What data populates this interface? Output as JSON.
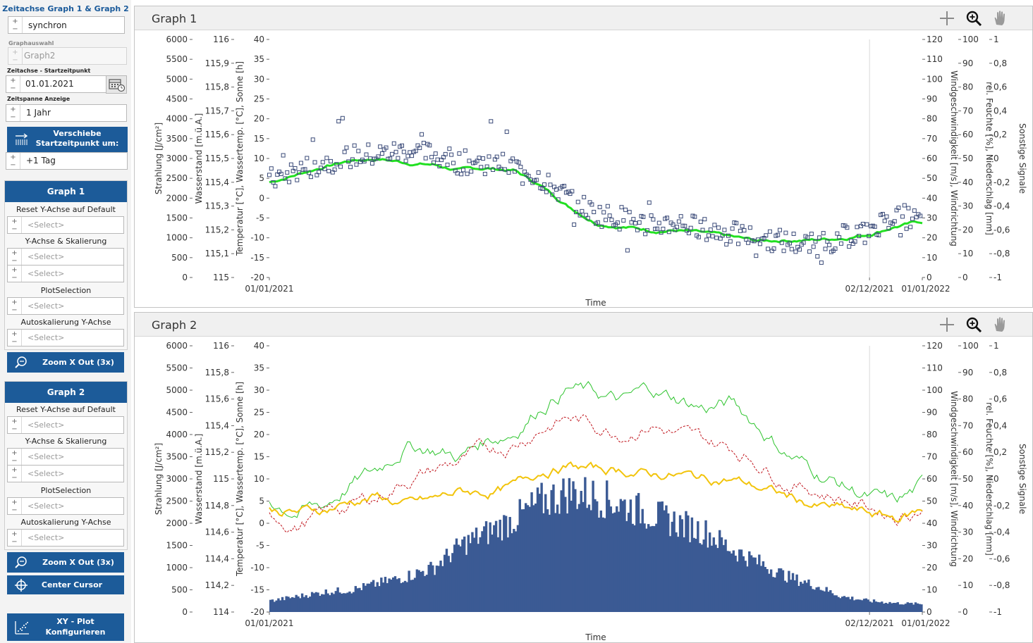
{
  "sidebar": {
    "timeaxis_caption": "Zeitachse Graph 1 & Graph 2",
    "sync_value": "synchron",
    "graphselect_label": "Graphauswahl",
    "graphselect_value": "Graph2",
    "start_label": "Zeitachse - Startzeitpunkt",
    "start_value": "01.01.2021",
    "span_label": "Zeitspanne Anzeige",
    "span_value": "1 Jahr",
    "shift_button": "Verschiebe Startzeitpunkt um:",
    "shift_value": "+1 Tag",
    "graph1": {
      "title": "Graph 1",
      "reset_label": "Reset Y-Achse auf Default",
      "scale_label": "Y-Achse & Skalierung",
      "plotsel_label": "PlotSelection",
      "autoscale_label": "Autoskalierung Y-Achse",
      "select_placeholder": "<Select>",
      "zoom_button": "Zoom X Out (3x)"
    },
    "graph2": {
      "title": "Graph 2",
      "reset_label": "Reset Y-Achse auf Default",
      "scale_label": "Y-Achse & Skalierung",
      "plotsel_label": "PlotSelection",
      "autoscale_label": "Autoskalierung Y-Achse",
      "select_placeholder": "<Select>",
      "zoom_button": "Zoom X Out (3x)"
    },
    "center_button": "Center Cursor",
    "xy_button": "XY - Plot Konfigurieren"
  },
  "graph1": {
    "title": "Graph 1",
    "icons": [
      "crosshair-icon",
      "zoom-icon",
      "pan-hand-icon"
    ]
  },
  "graph2": {
    "title": "Graph 2",
    "icons": [
      "crosshair-icon",
      "zoom-icon",
      "pan-hand-icon"
    ]
  },
  "colors": {
    "accent": "#1c5b99",
    "bars": "#3b5a94",
    "green_thick": "#22e022",
    "green_thin": "#2ec42e",
    "red_dashed": "#c0141c",
    "yellow": "#f2c40c",
    "markers": "#3a4a78"
  },
  "chart_data": [
    {
      "type": "scatter",
      "name": "Graph 1",
      "x_range": [
        "2021-01-01",
        "2022-01-01"
      ],
      "x_ticks": [
        "01/01/2021",
        "02/12/2021",
        "01/01/2022"
      ],
      "xlabel": "Time",
      "cursor_x": "2021-12-02",
      "axes_left": [
        {
          "label": "Strahlung [J/cm²]",
          "range": [
            0,
            6000
          ],
          "ticks": [
            "6000",
            "5500",
            "5000",
            "4500",
            "4000",
            "3500",
            "3000",
            "2500",
            "2000",
            "1500",
            "1000",
            "500",
            "0"
          ]
        },
        {
          "label": "Wasserstand [m.ü.A.]",
          "range": [
            115,
            116
          ],
          "ticks": [
            "116",
            "115,9",
            "115,8",
            "115,7",
            "115,6",
            "115,5",
            "115,4",
            "115,3",
            "115,2",
            "115,1",
            "115"
          ]
        },
        {
          "label": "Temperatur [°C], Wassertemp. [°C],  Sonne [h]",
          "range": [
            -20,
            40
          ],
          "ticks": [
            "40",
            "35",
            "30",
            "25",
            "20",
            "15",
            "10",
            "5",
            "0",
            "-5",
            "-10",
            "-15",
            "-20"
          ]
        }
      ],
      "axes_right": [
        {
          "label": "Windgeschwindigkeit [m/s], Windrichtung",
          "range": [
            0,
            120
          ],
          "ticks": [
            "120",
            "110",
            "100",
            "90",
            "80",
            "70",
            "60",
            "50",
            "40",
            "30",
            "20",
            "10",
            "0"
          ]
        },
        {
          "label": "rel. Feuchte [%], Niederschlag [mm]",
          "range": [
            0,
            100
          ],
          "ticks": [
            "100",
            "90",
            "80",
            "70",
            "60",
            "50",
            "40",
            "30",
            "20",
            "10",
            "0"
          ]
        },
        {
          "label": "Sonstige Signale",
          "range": [
            -1,
            1
          ],
          "ticks": [
            "1",
            "0,8",
            "0,6",
            "0,4",
            "0,2",
            "0",
            "-0,2",
            "-0,4",
            "-0,6",
            "-0,8",
            "-1"
          ]
        }
      ],
      "series": [
        {
          "kind": "line",
          "axis": "Temperatur [°C], Wassertemp. [°C],  Sonne [h]",
          "x_month": [
            0,
            0.5,
            1,
            1.5,
            2,
            2.5,
            3,
            3.5,
            4,
            4.5,
            5,
            5.5,
            6,
            6.5,
            7,
            7.5,
            8,
            8.5,
            9,
            9.5,
            10,
            10.5,
            11,
            11.5,
            12
          ],
          "values": [
            4,
            6,
            8,
            9.5,
            10,
            9,
            8.5,
            7,
            7.5,
            7,
            3,
            -2,
            -6,
            -7,
            -8,
            -8,
            -9,
            -10,
            -11,
            -10.5,
            -10.5,
            -10,
            -9,
            -7,
            -6
          ]
        },
        {
          "kind": "markers",
          "axis": "Temperatur [°C], Wassertemp. [°C],  Sonne [h]",
          "x_month": [
            0,
            0.5,
            1,
            1.5,
            2,
            2.5,
            3,
            3.5,
            4,
            4.5,
            5,
            5.5,
            6,
            6.5,
            7,
            7.5,
            8,
            8.5,
            9,
            9.5,
            10,
            10.5,
            11,
            11.5,
            12
          ],
          "values": [
            4.5,
            7,
            9,
            10.5,
            11,
            12,
            11,
            9,
            9,
            8,
            5,
            0,
            -4,
            -5,
            -7,
            -6,
            -8,
            -9,
            -10,
            -11,
            -12,
            -10,
            -8,
            -4,
            -6
          ]
        }
      ]
    },
    {
      "type": "line",
      "name": "Graph 2",
      "x_range": [
        "2021-01-01",
        "2022-01-01"
      ],
      "x_ticks": [
        "01/01/2021",
        "02/12/2021",
        "01/01/2022"
      ],
      "xlabel": "Time",
      "cursor_x": "2021-12-02",
      "axes_left": [
        {
          "label": "Strahlung [J/cm²]",
          "range": [
            0,
            6000
          ],
          "ticks": [
            "6000",
            "5500",
            "5000",
            "4500",
            "4000",
            "3500",
            "3000",
            "2500",
            "2000",
            "1500",
            "1000",
            "500",
            "0"
          ]
        },
        {
          "label": "Wasserstand [m.ü.A.]",
          "range": [
            114,
            116
          ],
          "ticks": [
            "116",
            "115,8",
            "115,6",
            "115,4",
            "115,2",
            "115",
            "114,8",
            "114,6",
            "114,4",
            "114,2",
            "114"
          ]
        },
        {
          "label": "Temperatur [°C], Wassertemp. [°C],  Sonne [h]",
          "range": [
            -20,
            40
          ],
          "ticks": [
            "40",
            "35",
            "30",
            "25",
            "20",
            "15",
            "10",
            "5",
            "0",
            "-5",
            "-10",
            "-15",
            "-20"
          ]
        }
      ],
      "axes_right": [
        {
          "label": "Windgeschwindigkeit [m/s], Windrichtung",
          "range": [
            0,
            120
          ],
          "ticks": [
            "120",
            "110",
            "100",
            "90",
            "80",
            "70",
            "60",
            "50",
            "40",
            "30",
            "20",
            "10",
            "0"
          ]
        },
        {
          "label": "rel. Feuchte [%], Niederschlag [mm]",
          "range": [
            0,
            100
          ],
          "ticks": [
            "100",
            "90",
            "80",
            "70",
            "60",
            "50",
            "40",
            "30",
            "20",
            "10",
            "0"
          ]
        },
        {
          "label": "Sonstige Signale",
          "range": [
            -1,
            1
          ],
          "ticks": [
            "1",
            "0,8",
            "0,6",
            "0,4",
            "0,2",
            "0",
            "-0,2",
            "-0,4",
            "-0,6",
            "-0,8",
            "-1"
          ]
        }
      ],
      "series": [
        {
          "kind": "area",
          "axis": "Strahlung [J/cm²]",
          "x_month": [
            0,
            0.5,
            1,
            1.5,
            2,
            2.5,
            3,
            3.5,
            4,
            4.5,
            5,
            5.5,
            6,
            6.5,
            7,
            7.5,
            8,
            8.5,
            9,
            9.5,
            10,
            10.5,
            11,
            11.5,
            12
          ],
          "values": [
            250,
            350,
            450,
            500,
            650,
            800,
            1000,
            1500,
            1800,
            2100,
            2500,
            2700,
            2600,
            2400,
            2200,
            2000,
            1800,
            1400,
            1100,
            800,
            600,
            350,
            250,
            200,
            180
          ]
        },
        {
          "kind": "line",
          "style": "thin-green",
          "axis": "Temperatur [°C], Wassertemp. [°C],  Sonne [h]",
          "x_month": [
            0,
            0.5,
            1,
            1.5,
            2,
            2.5,
            3,
            3.5,
            4,
            4.5,
            5,
            5.5,
            6,
            6.5,
            7,
            7.5,
            8,
            8.5,
            9,
            9.5,
            10,
            10.5,
            11,
            11.5,
            12
          ],
          "values": [
            5,
            3,
            4,
            9,
            12,
            18,
            17,
            15,
            19,
            21,
            27,
            31,
            29,
            27,
            30,
            28,
            26,
            27,
            22,
            16,
            12,
            9,
            6,
            4,
            8
          ]
        },
        {
          "kind": "line",
          "style": "red-dashed",
          "axis": "Temperatur [°C], Wassertemp. [°C],  Sonne [h]",
          "x_month": [
            0,
            0.5,
            1,
            1.5,
            2,
            2.5,
            3,
            3.5,
            4,
            4.5,
            5,
            5.5,
            6,
            6.5,
            7,
            7.5,
            8,
            8.5,
            9,
            9.5,
            10,
            10.5,
            11,
            11.5,
            12
          ],
          "values": [
            3,
            0,
            2,
            4,
            6,
            10,
            12,
            14,
            16,
            18,
            22,
            24,
            22,
            21,
            23,
            20,
            18,
            17,
            14,
            10,
            8,
            6,
            4,
            2,
            4
          ]
        },
        {
          "kind": "line",
          "style": "yellow",
          "axis": "Temperatur [°C], Wassertemp. [°C],  Sonne [h]",
          "x_month": [
            0,
            0.5,
            1,
            1.5,
            2,
            2.5,
            3,
            3.5,
            4,
            4.5,
            5,
            5.5,
            6,
            6.5,
            7,
            7.5,
            8,
            8.5,
            9,
            9.5,
            10,
            10.5,
            11,
            11.5,
            12
          ],
          "values": [
            3,
            2.5,
            3,
            5,
            6,
            4,
            5,
            7,
            7,
            8,
            12,
            13,
            12,
            12,
            11,
            11,
            10,
            10,
            8,
            6,
            4,
            3,
            2,
            1,
            3
          ]
        }
      ]
    }
  ]
}
